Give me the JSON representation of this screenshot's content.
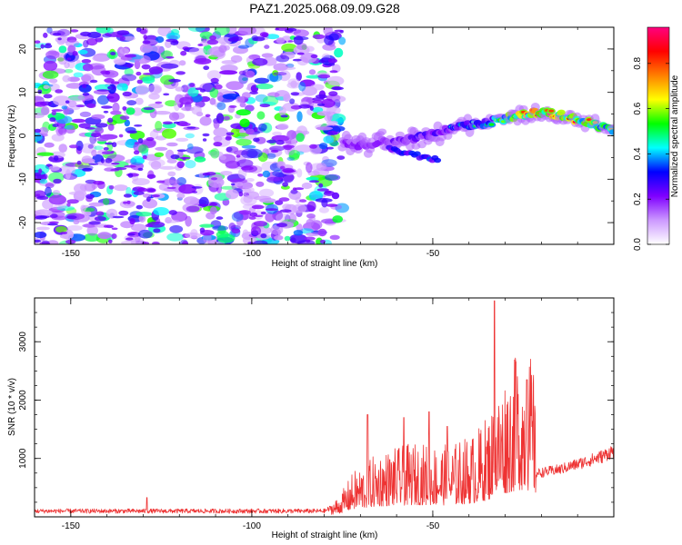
{
  "title": "PAZ1.2025.068.09.09.G28",
  "chart_data": [
    {
      "type": "heatmap",
      "xlabel": "Height of straight line (km)",
      "ylabel": "Frequency (Hz)",
      "xlim": [
        -160,
        0
      ],
      "ylim": [
        -25,
        25
      ],
      "x_ticks": [
        "-150",
        "-100",
        "-50"
      ],
      "y_ticks": [
        "20",
        "10",
        "0",
        "-10",
        "-20"
      ],
      "colorbar": {
        "label": "Normalized spectral amplitude",
        "range": [
          0,
          0.96
        ],
        "ticks": [
          "0.0",
          "0.2",
          "0.4",
          "0.6",
          "0.8"
        ],
        "colors": [
          "#ffffff",
          "#cc99ff",
          "#7f00ff",
          "#0000ff",
          "#00ffff",
          "#00ff00",
          "#ffff00",
          "#ff7f00",
          "#ff0000",
          "#ff0080"
        ]
      },
      "noise_region_x": [
        -160,
        -75
      ],
      "ridge": [
        {
          "x": -75,
          "y": -1.5,
          "a": 0.22
        },
        {
          "x": -70,
          "y": -2.0,
          "a": 0.24
        },
        {
          "x": -65,
          "y": -1.5,
          "a": 0.26
        },
        {
          "x": -60,
          "y": -1.0,
          "a": 0.25
        },
        {
          "x": -55,
          "y": -0.5,
          "a": 0.3
        },
        {
          "x": -50,
          "y": 0.5,
          "a": 0.3
        },
        {
          "x": -45,
          "y": 1.5,
          "a": 0.35
        },
        {
          "x": -40,
          "y": 2.5,
          "a": 0.42
        },
        {
          "x": -35,
          "y": 3.0,
          "a": 0.45
        },
        {
          "x": -30,
          "y": 4.0,
          "a": 0.6
        },
        {
          "x": -25,
          "y": 5.0,
          "a": 0.75
        },
        {
          "x": -20,
          "y": 5.3,
          "a": 0.85
        },
        {
          "x": -15,
          "y": 4.8,
          "a": 0.8
        },
        {
          "x": -10,
          "y": 3.8,
          "a": 0.72
        },
        {
          "x": -5,
          "y": 2.5,
          "a": 0.62
        },
        {
          "x": 0,
          "y": 1.0,
          "a": 0.55
        }
      ]
    },
    {
      "type": "line",
      "xlabel": "Height of straight line (km)",
      "ylabel": "SNR (10 * v/v)",
      "xlim": [
        -160,
        0
      ],
      "ylim": [
        0,
        3750
      ],
      "x_ticks": [
        "-150",
        "-100",
        "-50"
      ],
      "y_ticks": [
        "1000",
        "2000",
        "3000"
      ],
      "color": "#ee3333",
      "envelope": [
        {
          "x": -160,
          "y": 110
        },
        {
          "x": -80,
          "y": 110
        },
        {
          "x": -76,
          "y": 220
        },
        {
          "x": -72,
          "y": 500
        },
        {
          "x": -65,
          "y": 720
        },
        {
          "x": -55,
          "y": 820
        },
        {
          "x": -45,
          "y": 800
        },
        {
          "x": -38,
          "y": 950
        },
        {
          "x": -34,
          "y": 1200
        },
        {
          "x": -30,
          "y": 1600
        },
        {
          "x": -26,
          "y": 1850
        },
        {
          "x": -22,
          "y": 1750
        },
        {
          "x": -21.5,
          "y": 750
        },
        {
          "x": -15,
          "y": 820
        },
        {
          "x": -8,
          "y": 950
        },
        {
          "x": -3,
          "y": 1050
        },
        {
          "x": 0,
          "y": 1150
        }
      ],
      "spikes": [
        {
          "x": -129,
          "y": 330
        },
        {
          "x": -68,
          "y": 1750
        },
        {
          "x": -58,
          "y": 1700
        },
        {
          "x": -51,
          "y": 1800
        },
        {
          "x": -46,
          "y": 1550
        },
        {
          "x": -33,
          "y": 3700
        },
        {
          "x": -27,
          "y": 2650
        },
        {
          "x": -24,
          "y": 2350
        }
      ]
    }
  ]
}
